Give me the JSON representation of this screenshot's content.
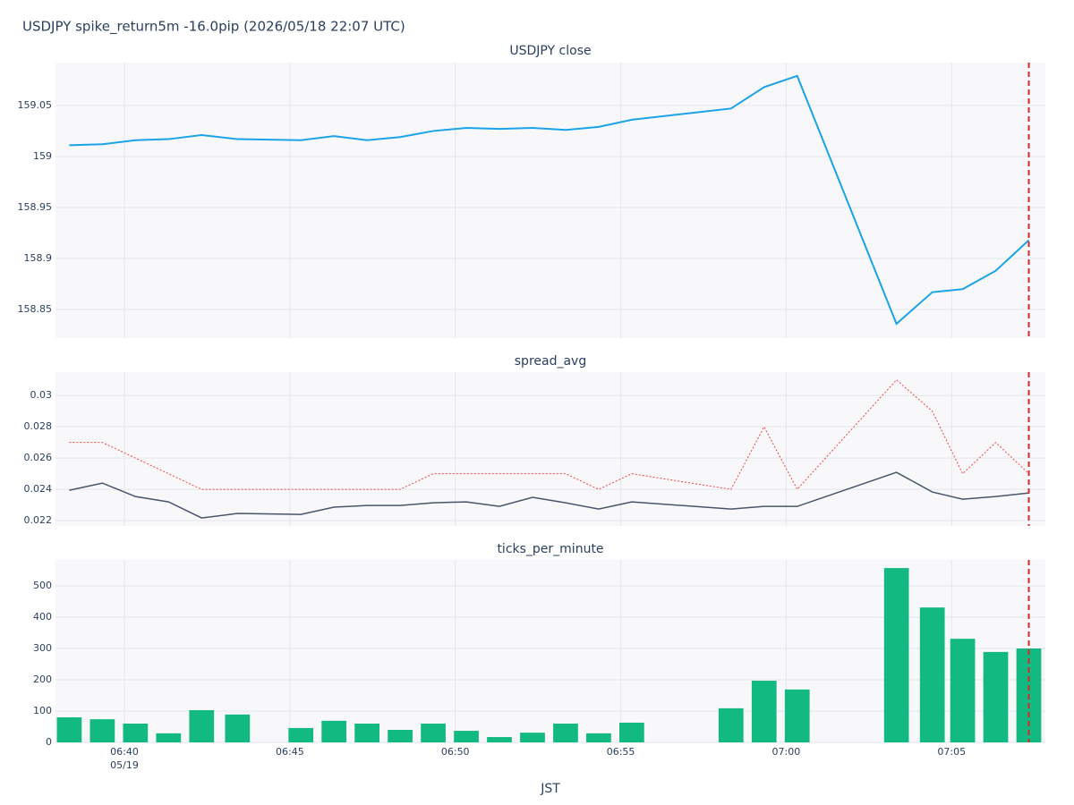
{
  "title": "USDJPY spike_return5m -16.0pip (2026/05/18 22:07 UTC)",
  "chart_data": [
    {
      "type": "line",
      "title": "USDJPY close",
      "x": [
        "06:38:20",
        "06:39:20",
        "06:40:20",
        "06:41:20",
        "06:42:20",
        "06:43:25",
        "06:45:20",
        "06:46:20",
        "06:47:20",
        "06:48:20",
        "06:49:20",
        "06:50:20",
        "06:51:20",
        "06:52:20",
        "06:53:20",
        "06:54:20",
        "06:55:20",
        "06:58:20",
        "06:59:20",
        "07:00:20",
        "07:03:20",
        "07:04:25",
        "07:05:20",
        "07:06:20",
        "07:07:20"
      ],
      "series": [
        {
          "color": "#1aa3e8",
          "values": [
            159.011,
            159.012,
            159.016,
            159.017,
            159.021,
            159.017,
            159.016,
            159.02,
            159.016,
            159.019,
            159.025,
            159.028,
            159.027,
            159.028,
            159.026,
            159.029,
            159.036,
            159.047,
            159.068,
            159.079,
            158.836,
            158.867,
            158.87,
            158.888,
            158.918
          ]
        }
      ],
      "xlim": [
        "06:37:55",
        "07:07:50"
      ],
      "xticks": [
        "06:40",
        "06:45",
        "06:50",
        "06:55",
        "07:00",
        "07:05"
      ],
      "ylim": [
        158.822,
        159.092
      ],
      "yticks": [
        158.85,
        158.9,
        158.95,
        159,
        159.05
      ],
      "grid": true,
      "vline": {
        "x": "07:07:20",
        "color": "#dc2626"
      }
    },
    {
      "type": "line",
      "title": "spread_avg",
      "x": [
        "06:38:20",
        "06:39:20",
        "06:40:20",
        "06:41:20",
        "06:42:20",
        "06:43:25",
        "06:45:20",
        "06:46:20",
        "06:47:20",
        "06:48:20",
        "06:49:20",
        "06:50:20",
        "06:51:20",
        "06:52:20",
        "06:53:20",
        "06:54:20",
        "06:55:20",
        "06:58:20",
        "06:59:20",
        "07:00:20",
        "07:03:20",
        "07:04:25",
        "07:05:20",
        "07:06:20",
        "07:07:20"
      ],
      "series": [
        {
          "color": "#ef4444",
          "dash": "dot",
          "values": [
            0.027,
            0.027,
            0.026,
            0.025,
            0.024,
            0.024,
            0.024,
            0.024,
            0.024,
            0.024,
            0.025,
            0.025,
            0.025,
            0.025,
            0.025,
            0.024,
            0.025,
            0.024,
            0.028,
            0.024,
            0.031,
            0.029,
            0.025,
            0.027,
            0.025
          ]
        },
        {
          "color": "#475569",
          "values": [
            0.02394,
            0.0244,
            0.02354,
            0.0232,
            0.02217,
            0.02246,
            0.0224,
            0.02286,
            0.02297,
            0.02297,
            0.02314,
            0.0232,
            0.02291,
            0.02349,
            0.02314,
            0.02274,
            0.0232,
            0.02274,
            0.02291,
            0.02291,
            0.02509,
            0.02383,
            0.02337,
            0.02354,
            0.02377
          ]
        }
      ],
      "xlim": [
        "06:37:55",
        "07:07:50"
      ],
      "xticks": [
        "06:40",
        "06:45",
        "06:50",
        "06:55",
        "07:00",
        "07:05"
      ],
      "ylim": [
        0.02166,
        0.0315
      ],
      "yticks": [
        0.022,
        0.024,
        0.026,
        0.028,
        0.03
      ],
      "grid": true,
      "vline": {
        "x": "07:07:20",
        "color": "#dc2626"
      }
    },
    {
      "type": "bar",
      "title": "ticks_per_minute",
      "x": [
        "06:38:20",
        "06:39:20",
        "06:40:20",
        "06:41:20",
        "06:42:20",
        "06:43:25",
        "06:45:20",
        "06:46:20",
        "06:47:20",
        "06:48:20",
        "06:49:20",
        "06:50:20",
        "06:51:20",
        "06:52:20",
        "06:53:20",
        "06:54:20",
        "06:55:20",
        "06:58:20",
        "06:59:20",
        "07:00:20",
        "07:03:20",
        "07:04:25",
        "07:05:20",
        "07:06:20",
        "07:07:20"
      ],
      "series": [
        {
          "color": "#12b981",
          "values": [
            80,
            74,
            60,
            29,
            103,
            89,
            46,
            69,
            60,
            40,
            60,
            37,
            17,
            31,
            60,
            29,
            63,
            109,
            197,
            169,
            557,
            431,
            331,
            289,
            300
          ]
        }
      ],
      "xlim": [
        "06:37:55",
        "07:07:50"
      ],
      "xticks": [
        "06:40",
        "06:45",
        "06:50",
        "06:55",
        "07:00",
        "07:05"
      ],
      "xtick_date": "05/19",
      "xlabel": "JST",
      "ylim": [
        0,
        583
      ],
      "yticks": [
        0,
        100,
        200,
        300,
        400,
        500
      ],
      "grid": true,
      "vline": {
        "x": "07:07:20",
        "color": "#dc2626"
      }
    }
  ]
}
